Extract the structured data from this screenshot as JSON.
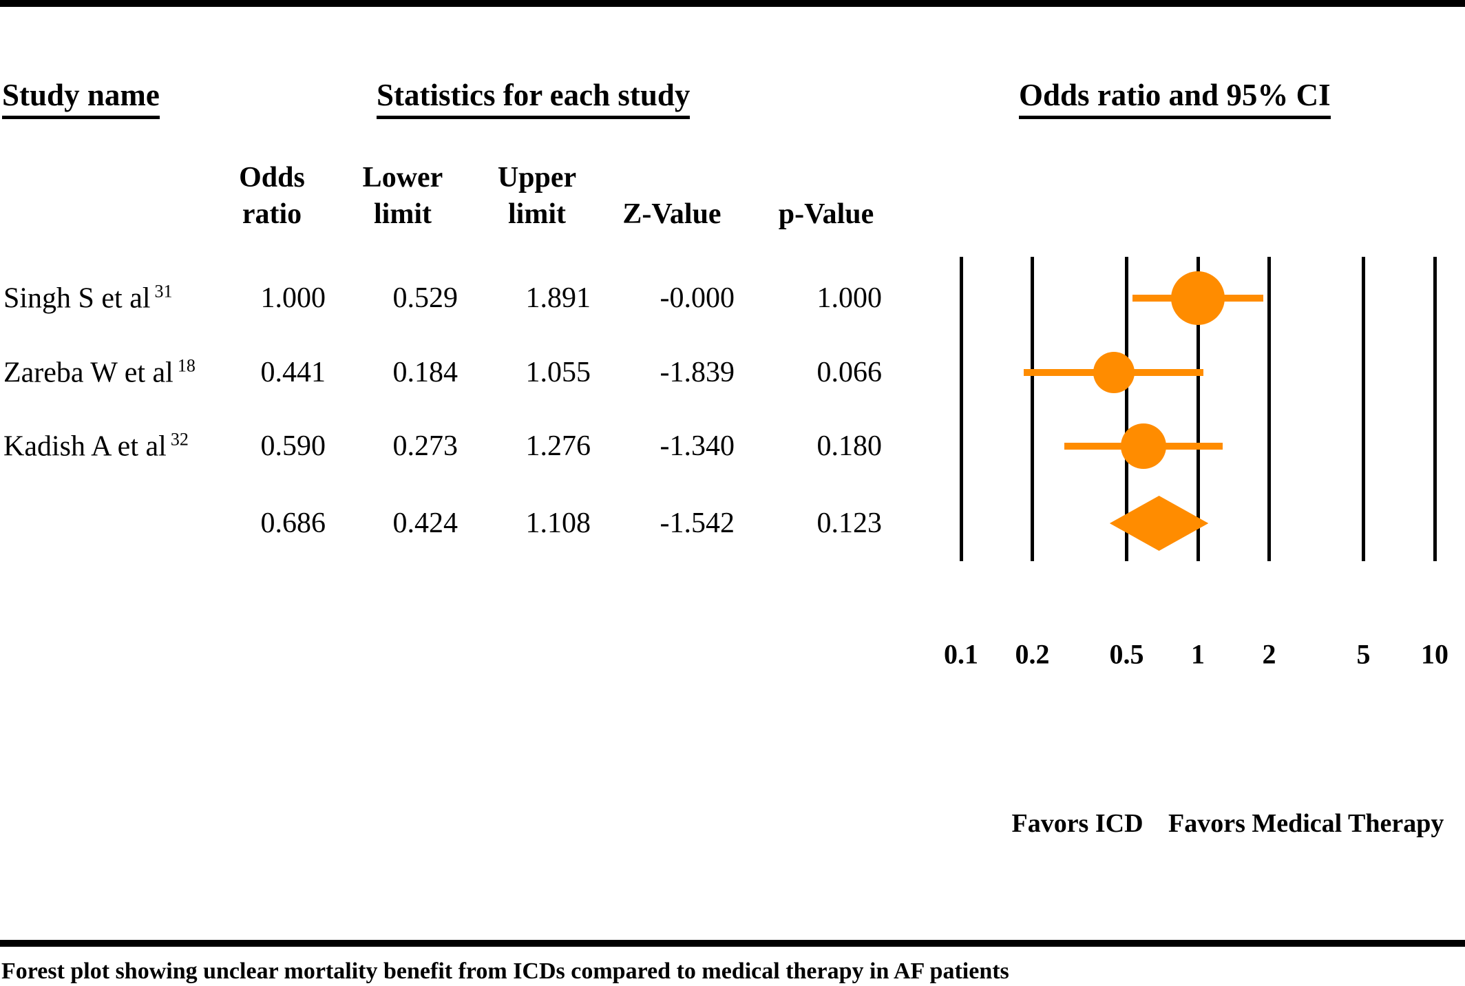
{
  "figure": {
    "headers": {
      "study_name": "Study name",
      "statistics": "Statistics for each study",
      "or_ci": "Odds ratio and 95% CI"
    },
    "columns": {
      "odds_ratio": "Odds\nratio",
      "lower_limit": "Lower\nlimit",
      "upper_limit": "Upper\nlimit",
      "z_value": "Z-Value",
      "p_value": "p-Value"
    },
    "footer_labels": {
      "favors_left": "Favors ICD",
      "favors_right": "Favors Medical Therapy"
    },
    "caption": "Forest plot showing unclear mortality benefit from ICDs compared to medical therapy in AF patients"
  },
  "table": {
    "rows": [
      {
        "study": "Singh S et al",
        "ref": "31",
        "or": "1.000",
        "lower": "0.529",
        "upper": "1.891",
        "z": "-0.000",
        "p": "1.000"
      },
      {
        "study": "Zareba W et al",
        "ref": "18",
        "or": "0.441",
        "lower": "0.184",
        "upper": "1.055",
        "z": "-1.839",
        "p": "0.066"
      },
      {
        "study": "Kadish A et al",
        "ref": "32",
        "or": "0.590",
        "lower": "0.273",
        "upper": "1.276",
        "z": "-1.340",
        "p": "0.180"
      },
      {
        "study": "",
        "ref": "",
        "or": "0.686",
        "lower": "0.424",
        "upper": "1.108",
        "z": "-1.542",
        "p": "0.123"
      }
    ]
  },
  "chart_data": {
    "type": "scatter",
    "subtype": "forest-plot",
    "title": "Odds ratio and 95% CI",
    "x_scale": "log10",
    "axis": {
      "ticks": [
        0.1,
        0.2,
        0.5,
        1,
        2,
        5,
        10
      ],
      "tick_labels": [
        "0.1",
        "0.2",
        "0.5",
        "1",
        "2",
        "5",
        "10"
      ],
      "xlim": [
        0.1,
        10
      ],
      "grid": "vertical-lines-at-ticks"
    },
    "studies": [
      {
        "label": "Singh S et al 31",
        "or": 1.0,
        "lower": 0.529,
        "upper": 1.891,
        "marker_radius_px": 39
      },
      {
        "label": "Zareba W et al 18",
        "or": 0.441,
        "lower": 0.184,
        "upper": 1.055,
        "marker_radius_px": 30
      },
      {
        "label": "Kadish A et al 32",
        "or": 0.59,
        "lower": 0.273,
        "upper": 1.276,
        "marker_radius_px": 33
      }
    ],
    "summary": {
      "or": 0.686,
      "lower": 0.424,
      "upper": 1.108,
      "z": -1.542,
      "p": 0.123
    },
    "annotations": [
      "Favors ICD",
      "Favors Medical Therapy"
    ],
    "marker_color": "#FF8C00",
    "line_color": "#000000"
  }
}
